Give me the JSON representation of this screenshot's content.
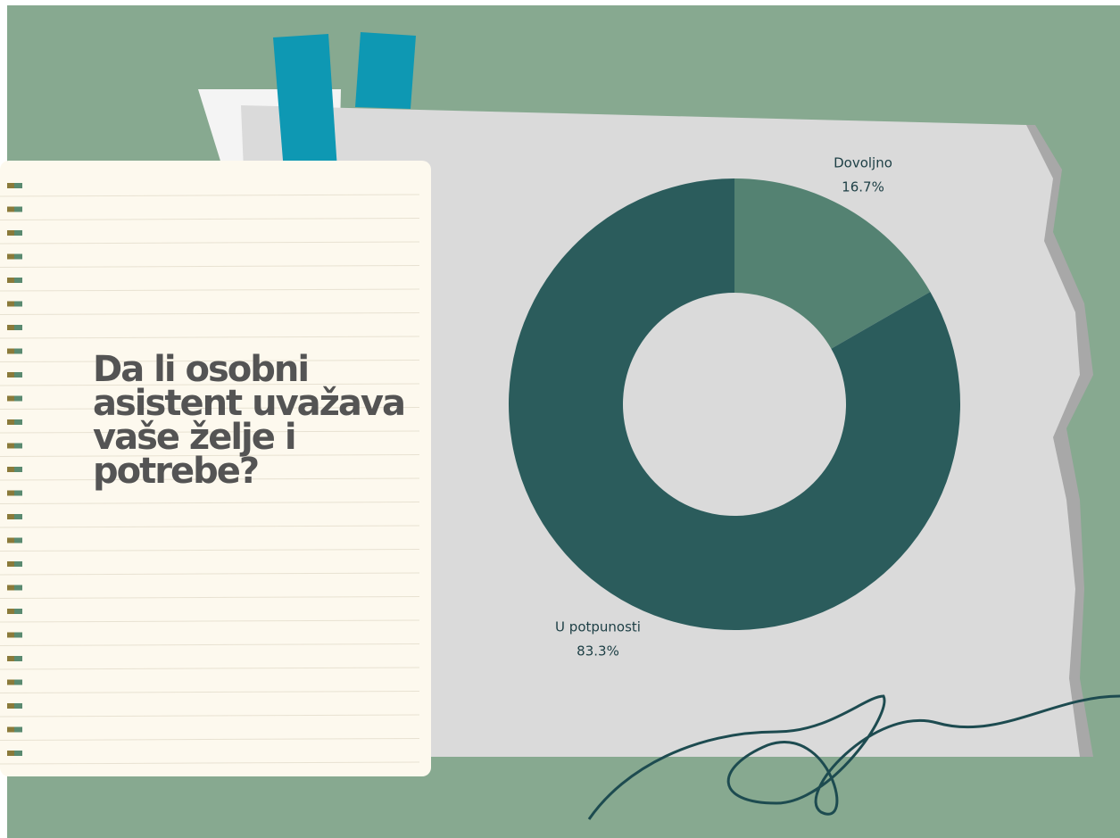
{
  "chart_data": {
    "type": "donut",
    "title": "Da li osobni asistent uvažava vaše želje i potrebe?",
    "categories": [
      "Dovoljno",
      "U potpunosti"
    ],
    "values": [
      16.7,
      83.3
    ],
    "value_labels": [
      "16.7%",
      "83.3%"
    ],
    "colors": [
      "#548272",
      "#2b5c5c"
    ]
  }
}
